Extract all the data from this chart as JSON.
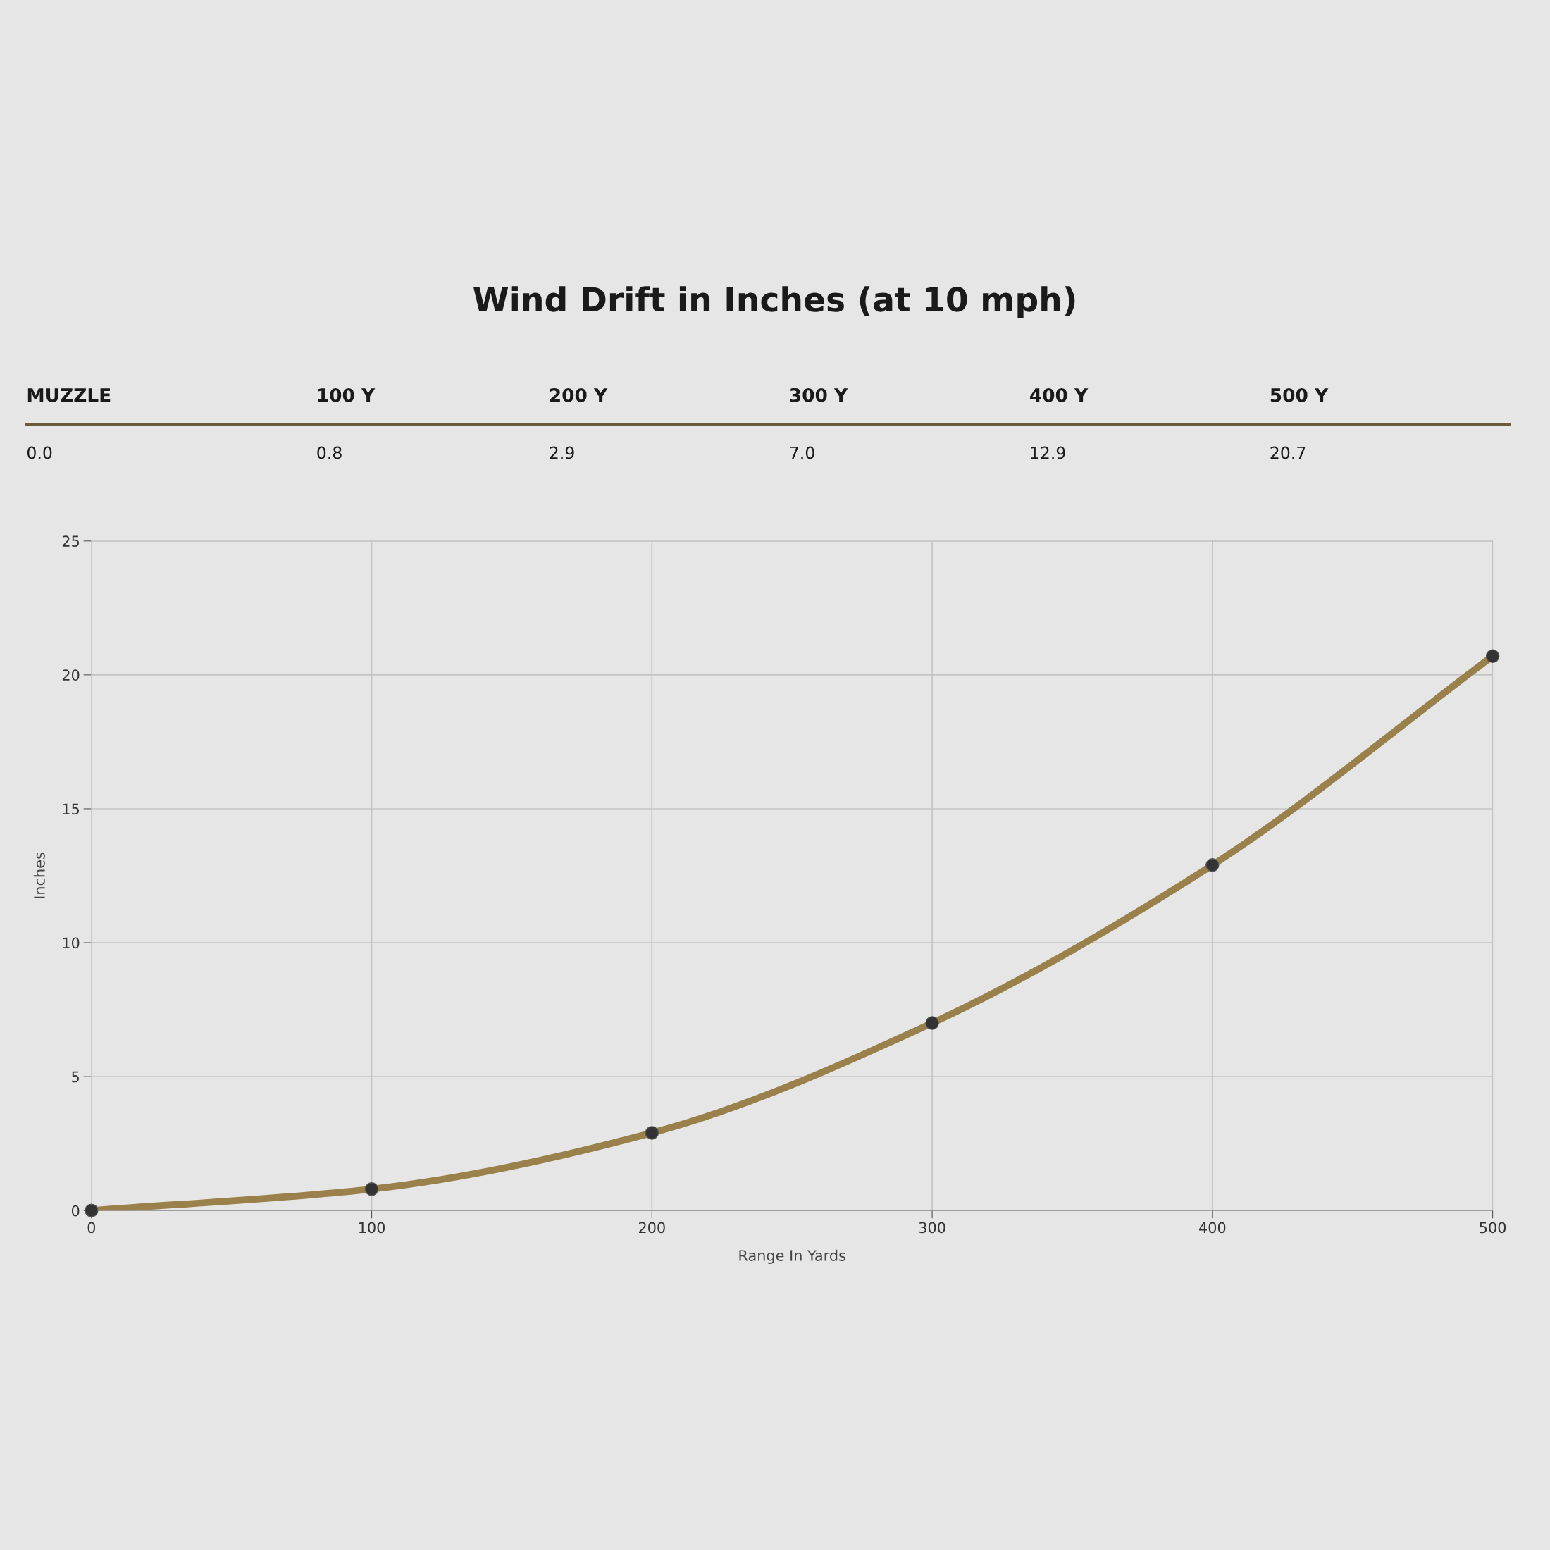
{
  "chart_data": {
    "type": "line",
    "title": "Wind Drift in Inches (at 10 mph)",
    "annotations": [
      "MUZZLE",
      "100 Y",
      "200 Y",
      "300 Y",
      "400 Y",
      "500 Y",
      "0.0",
      "0.8",
      "2.9",
      "7.0",
      "12.9",
      "20.7"
    ],
    "xlabel": "Range In Yards",
    "ylabel": "Inches",
    "x": [
      0,
      100,
      200,
      300,
      400,
      500
    ],
    "series": [
      {
        "color": "#9a804a",
        "values": [
          0.0,
          0.8,
          2.9,
          7.0,
          12.9,
          20.7
        ]
      }
    ],
    "xlim": [
      0,
      500
    ],
    "xticks": [
      0,
      100,
      200,
      300,
      400,
      500
    ],
    "ylim": [
      0,
      25
    ],
    "yticks": [
      0,
      5,
      10,
      15,
      20,
      25
    ],
    "grid": true,
    "marker": "circle",
    "line_style": "solid",
    "legend": false
  }
}
